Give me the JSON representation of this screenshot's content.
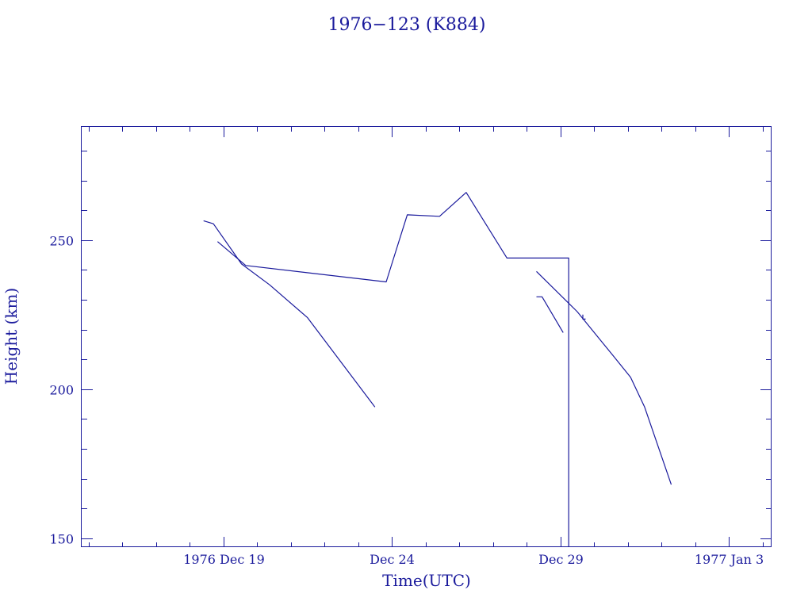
{
  "chart_data": {
    "type": "line",
    "title": "1976−123 (K884)",
    "xlabel": "Time(UTC)",
    "ylabel": "Height (km)",
    "x_unit": "date (UTC)",
    "xlim": [
      "1976-12-14T19:12",
      "1977-01-04T06:24"
    ],
    "ylim": [
      147,
      288
    ],
    "x_ticks": [
      {
        "x": "1976-12-19",
        "label": "1976 Dec 19"
      },
      {
        "x": "1976-12-24",
        "label": "Dec 24"
      },
      {
        "x": "1976-12-29",
        "label": "Dec 29"
      },
      {
        "x": "1977-01-03",
        "label": "1977 Jan  3"
      }
    ],
    "y_ticks": [
      {
        "y": 150,
        "label": "150"
      },
      {
        "y": 200,
        "label": "200"
      },
      {
        "y": 250,
        "label": "250"
      }
    ],
    "grid": false,
    "color": "#1a1a9c",
    "series": [
      {
        "points": [
          [
            "1976-12-18T10:00",
            256.5
          ],
          [
            "1976-12-18T17:00",
            255.5
          ],
          [
            "1976-12-19T13:00",
            242
          ],
          [
            "1976-12-20T09:00",
            235
          ],
          [
            "1976-12-21T12:00",
            224
          ],
          [
            "1976-12-23T12:00",
            194
          ]
        ]
      },
      {
        "points": [
          [
            "1976-12-18T20:00",
            249.5
          ],
          [
            "1976-12-19T16:00",
            241.5
          ],
          [
            "1976-12-23T20:00",
            236
          ],
          [
            "1976-12-24T11:00",
            258.5
          ],
          [
            "1976-12-25T10:00",
            258
          ],
          [
            "1976-12-26T05:00",
            266
          ],
          [
            "1976-12-27T10:00",
            244
          ],
          [
            "1976-12-29T06:00",
            244
          ],
          [
            "1976-12-29T06:00",
            147
          ]
        ]
      },
      {
        "points": [
          [
            "1976-12-28T07:00",
            231
          ],
          [
            "1976-12-28T11:00",
            231
          ],
          [
            "1976-12-29T02:00",
            219
          ]
        ]
      },
      {
        "points": [
          [
            "1976-12-28T07:00",
            239.5
          ],
          [
            "1976-12-29T12:00",
            226
          ],
          [
            "1976-12-30T14:00",
            211
          ],
          [
            "1976-12-31T02:00",
            204
          ],
          [
            "1976-12-31T12:00",
            194
          ],
          [
            "1977-01-01T07:00",
            168
          ]
        ]
      },
      {
        "points": [
          [
            "1976-12-29T16:00",
            225
          ],
          [
            "1976-12-29T16:00",
            223.5
          ],
          [
            "1976-12-29T18:00",
            223.5
          ]
        ]
      }
    ]
  }
}
